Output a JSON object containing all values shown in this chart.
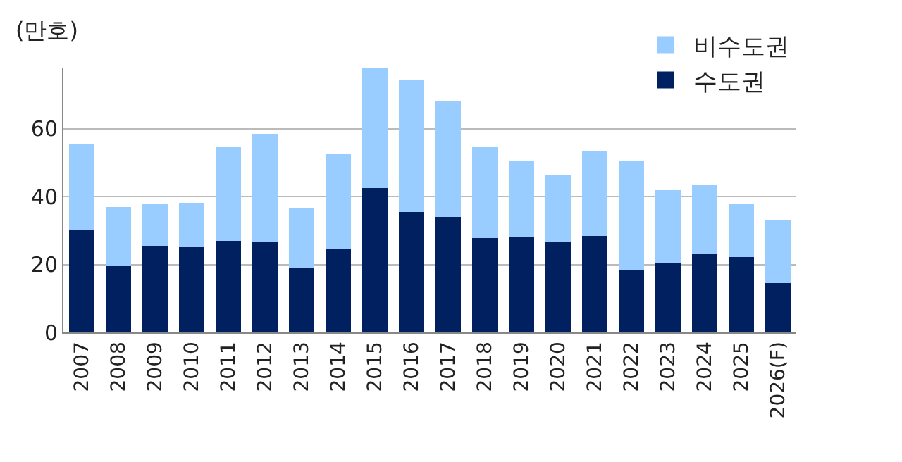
{
  "chart_data": {
    "type": "bar",
    "stacked": true,
    "ylabel": "(만호)",
    "categories": [
      "2007",
      "2008",
      "2009",
      "2010",
      "2011",
      "2012",
      "2013",
      "2014",
      "2015",
      "2016",
      "2017",
      "2018",
      "2019",
      "2020",
      "2021",
      "2022",
      "2023",
      "2024",
      "2025",
      "2026(F)"
    ],
    "series": [
      {
        "name": "수도권",
        "color": "#002060",
        "values": [
          30.1,
          19.4,
          25.4,
          25.0,
          27.0,
          26.5,
          19.0,
          24.7,
          42.6,
          35.5,
          34.0,
          27.8,
          28.2,
          26.5,
          28.5,
          18.3,
          20.3,
          23.1,
          22.3,
          14.5
        ]
      },
      {
        "name": "비수도권",
        "color": "#99ccff",
        "values": [
          25.4,
          17.6,
          12.3,
          13.2,
          27.6,
          32.1,
          17.7,
          27.9,
          35.3,
          39.0,
          34.2,
          26.8,
          22.2,
          19.9,
          25.0,
          32.1,
          21.7,
          20.2,
          15.4,
          18.5
        ]
      }
    ],
    "ylim": [
      0,
      78
    ],
    "yticks": [
      0,
      20,
      40,
      60
    ],
    "grid": "y",
    "legend": "top right"
  }
}
